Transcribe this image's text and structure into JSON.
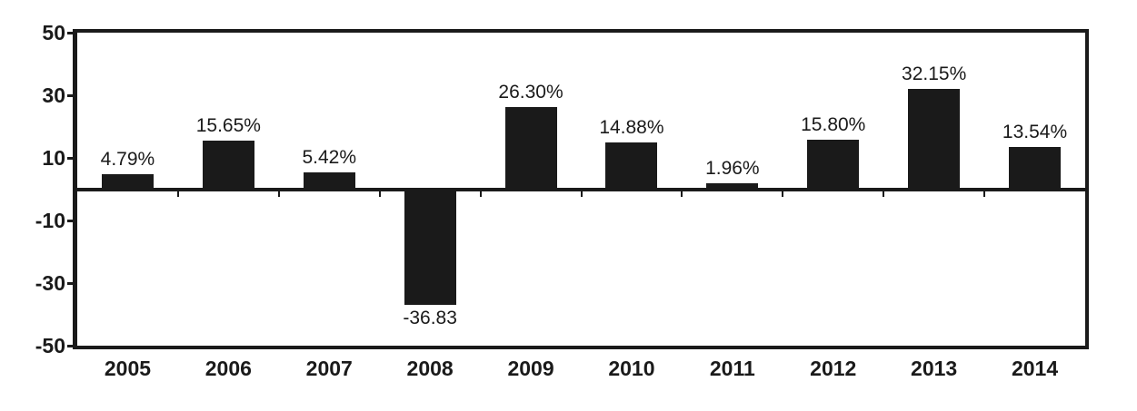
{
  "chart_data": {
    "type": "bar",
    "title": "",
    "xlabel": "",
    "ylabel": "",
    "categories": [
      "2005",
      "2006",
      "2007",
      "2008",
      "2009",
      "2010",
      "2011",
      "2012",
      "2013",
      "2014"
    ],
    "values": [
      4.79,
      15.65,
      5.42,
      -36.83,
      26.3,
      14.88,
      1.96,
      15.8,
      32.15,
      13.54
    ],
    "bar_labels": [
      "4.79%",
      "15.65%",
      "5.42%",
      "-36.83",
      "26.30%",
      "14.88%",
      "1.96%",
      "15.80%",
      "32.15%",
      "13.54%"
    ],
    "ylim": [
      -50,
      50
    ],
    "yticks": [
      50,
      30,
      10,
      -10,
      -30,
      -50
    ],
    "grid": false,
    "legend": false,
    "bar_color": "#1a1a1a",
    "axis_color": "#1a1a1a",
    "background_color": "#ffffff"
  }
}
